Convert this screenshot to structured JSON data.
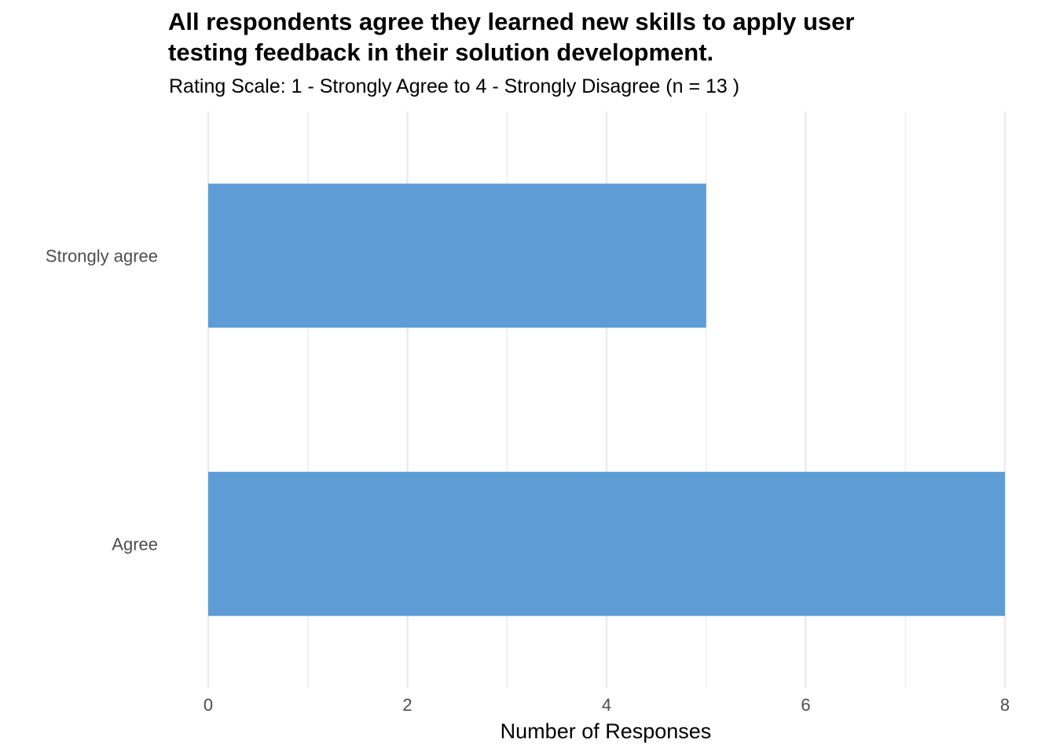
{
  "chart_data": {
    "type": "bar",
    "orientation": "horizontal",
    "title_lines": [
      "All respondents agree they learned new skills to apply user",
      "testing feedback in their solution development."
    ],
    "subtitle": "Rating Scale: 1 - Strongly Agree to 4 - Strongly Disagree (n = 13 )",
    "categories": [
      "Strongly agree",
      "Agree"
    ],
    "values": [
      5,
      8
    ],
    "xlabel": "Number of Responses",
    "ylabel": "",
    "xlim": [
      0,
      8
    ],
    "x_ticks": [
      0,
      2,
      4,
      6,
      8
    ],
    "grid": true,
    "bar_color": "#5e9cd5",
    "grid_color": "#ebebeb"
  }
}
